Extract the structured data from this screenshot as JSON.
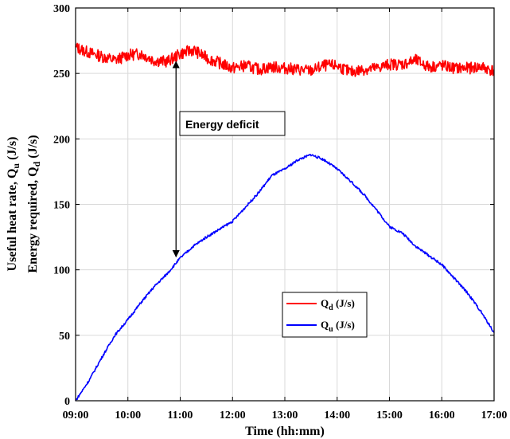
{
  "chart_data": {
    "type": "line",
    "xlabel": "Time (hh:mm)",
    "ylabel_line1": {
      "main": "Useful heat rate, Q",
      "sub": "u",
      "tail": " (J/s)"
    },
    "ylabel_line2": {
      "main": "Energy required, Q",
      "sub": "d",
      "tail": " (J/s)"
    },
    "xlim_hours": [
      9,
      17
    ],
    "ylim": [
      0,
      300
    ],
    "x_tick_labels": [
      "09:00",
      "10:00",
      "11:00",
      "12:00",
      "13:00",
      "14:00",
      "15:00",
      "16:00",
      "17:00"
    ],
    "y_tick_labels": [
      "0",
      "50",
      "100",
      "150",
      "200",
      "250",
      "300"
    ],
    "grid": true,
    "legend_position": "lower-right",
    "series": [
      {
        "name": "Qd",
        "legend_main": "Q",
        "legend_sub": "d",
        "legend_tail": " (J/s)",
        "color": "#ff0000",
        "x_hours": [
          9.0,
          9.25,
          9.5,
          9.75,
          10.0,
          10.25,
          10.5,
          10.75,
          11.0,
          11.25,
          11.5,
          11.75,
          12.0,
          12.25,
          12.5,
          12.75,
          13.0,
          13.25,
          13.5,
          13.75,
          14.0,
          14.25,
          14.5,
          14.75,
          15.0,
          15.25,
          15.5,
          15.75,
          16.0,
          16.25,
          16.5,
          16.75,
          17.0
        ],
        "values": [
          270,
          266,
          263,
          260,
          264,
          265,
          260,
          259,
          265,
          268,
          262,
          258,
          254,
          256,
          253,
          255,
          254,
          253,
          252,
          256,
          256,
          251,
          253,
          254,
          257,
          257,
          260,
          255,
          256,
          254,
          254,
          255,
          252
        ]
      },
      {
        "name": "Qu",
        "legend_main": "Q",
        "legend_sub": "u",
        "legend_tail": " (J/s)",
        "color": "#0000ff",
        "x_hours": [
          9.0,
          9.25,
          9.5,
          9.75,
          10.0,
          10.25,
          10.5,
          10.75,
          11.0,
          11.25,
          11.5,
          11.75,
          12.0,
          12.25,
          12.5,
          12.75,
          13.0,
          13.25,
          13.5,
          13.75,
          14.0,
          14.25,
          14.5,
          14.75,
          15.0,
          15.25,
          15.5,
          15.75,
          16.0,
          16.25,
          16.5,
          16.75,
          17.0
        ],
        "values": [
          0,
          15,
          33,
          50,
          62,
          75,
          87,
          97,
          109,
          118,
          125,
          131,
          137,
          148,
          159,
          172,
          177,
          184,
          188,
          184,
          177,
          168,
          158,
          146,
          133,
          128,
          118,
          111,
          104,
          93,
          82,
          68,
          52
        ]
      }
    ],
    "annotation": {
      "text": "Energy deficit",
      "arrow_x_hours": 10.92,
      "arrow_from": 259,
      "arrow_to": 110
    }
  }
}
